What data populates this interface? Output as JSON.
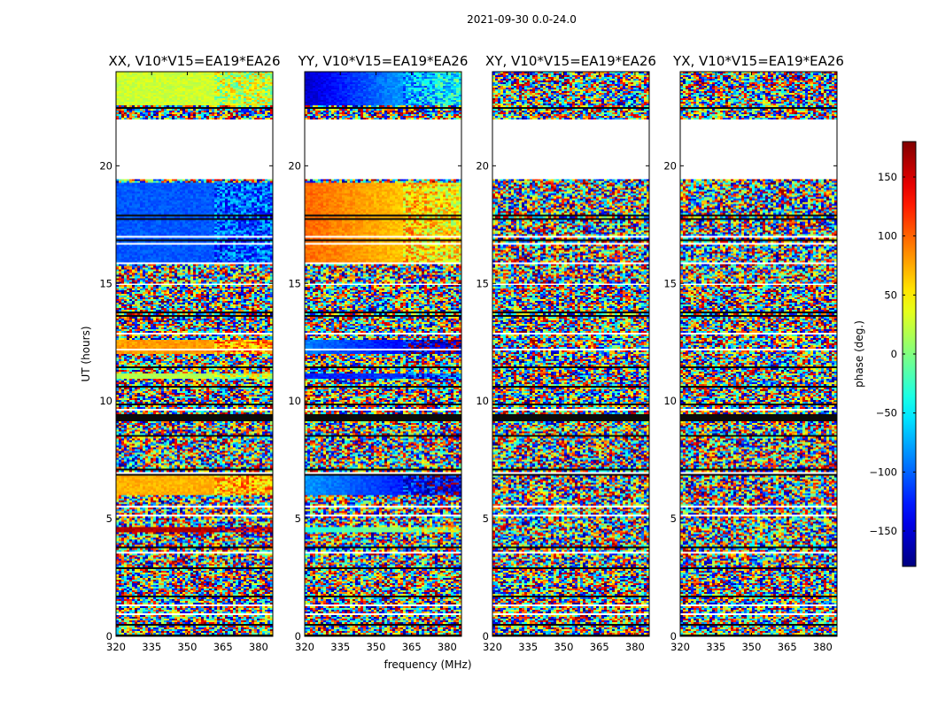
{
  "figure": {
    "title": "2021-09-30 0.0-24.0"
  },
  "chart_data": {
    "type": "heatmap",
    "xlabel": "frequency (MHz)",
    "ylabel": "UT (hours)",
    "xlim": [
      320,
      386
    ],
    "ylim": [
      0,
      24
    ],
    "x_ticks": [
      "320",
      "335",
      "350",
      "365",
      "380"
    ],
    "y_ticks": [
      "0",
      "5",
      "10",
      "15",
      "20"
    ],
    "y_tick_values": [
      0,
      5,
      10,
      15,
      20
    ],
    "x_tick_values": [
      320,
      335,
      350,
      365,
      380
    ],
    "panels": [
      {
        "title": "XX, V10*V15=EA19*EA26",
        "pol": "XX"
      },
      {
        "title": "YY, V10*V15=EA19*EA26",
        "pol": "YY"
      },
      {
        "title": "XY, V10*V15=EA19*EA26",
        "pol": "XY"
      },
      {
        "title": "YX, V10*V15=EA19*EA26",
        "pol": "YX"
      }
    ],
    "gaps_hours": [
      [
        19.4,
        22.0
      ]
    ],
    "colorbar": {
      "label": "phase (deg.)",
      "range": [
        -180,
        180
      ],
      "ticks": [
        "150",
        "100",
        "50",
        "0",
        "−50",
        "−100",
        "−150"
      ],
      "tick_values": [
        150,
        100,
        50,
        0,
        -50,
        -100,
        -150
      ],
      "colormap": "jet"
    }
  }
}
